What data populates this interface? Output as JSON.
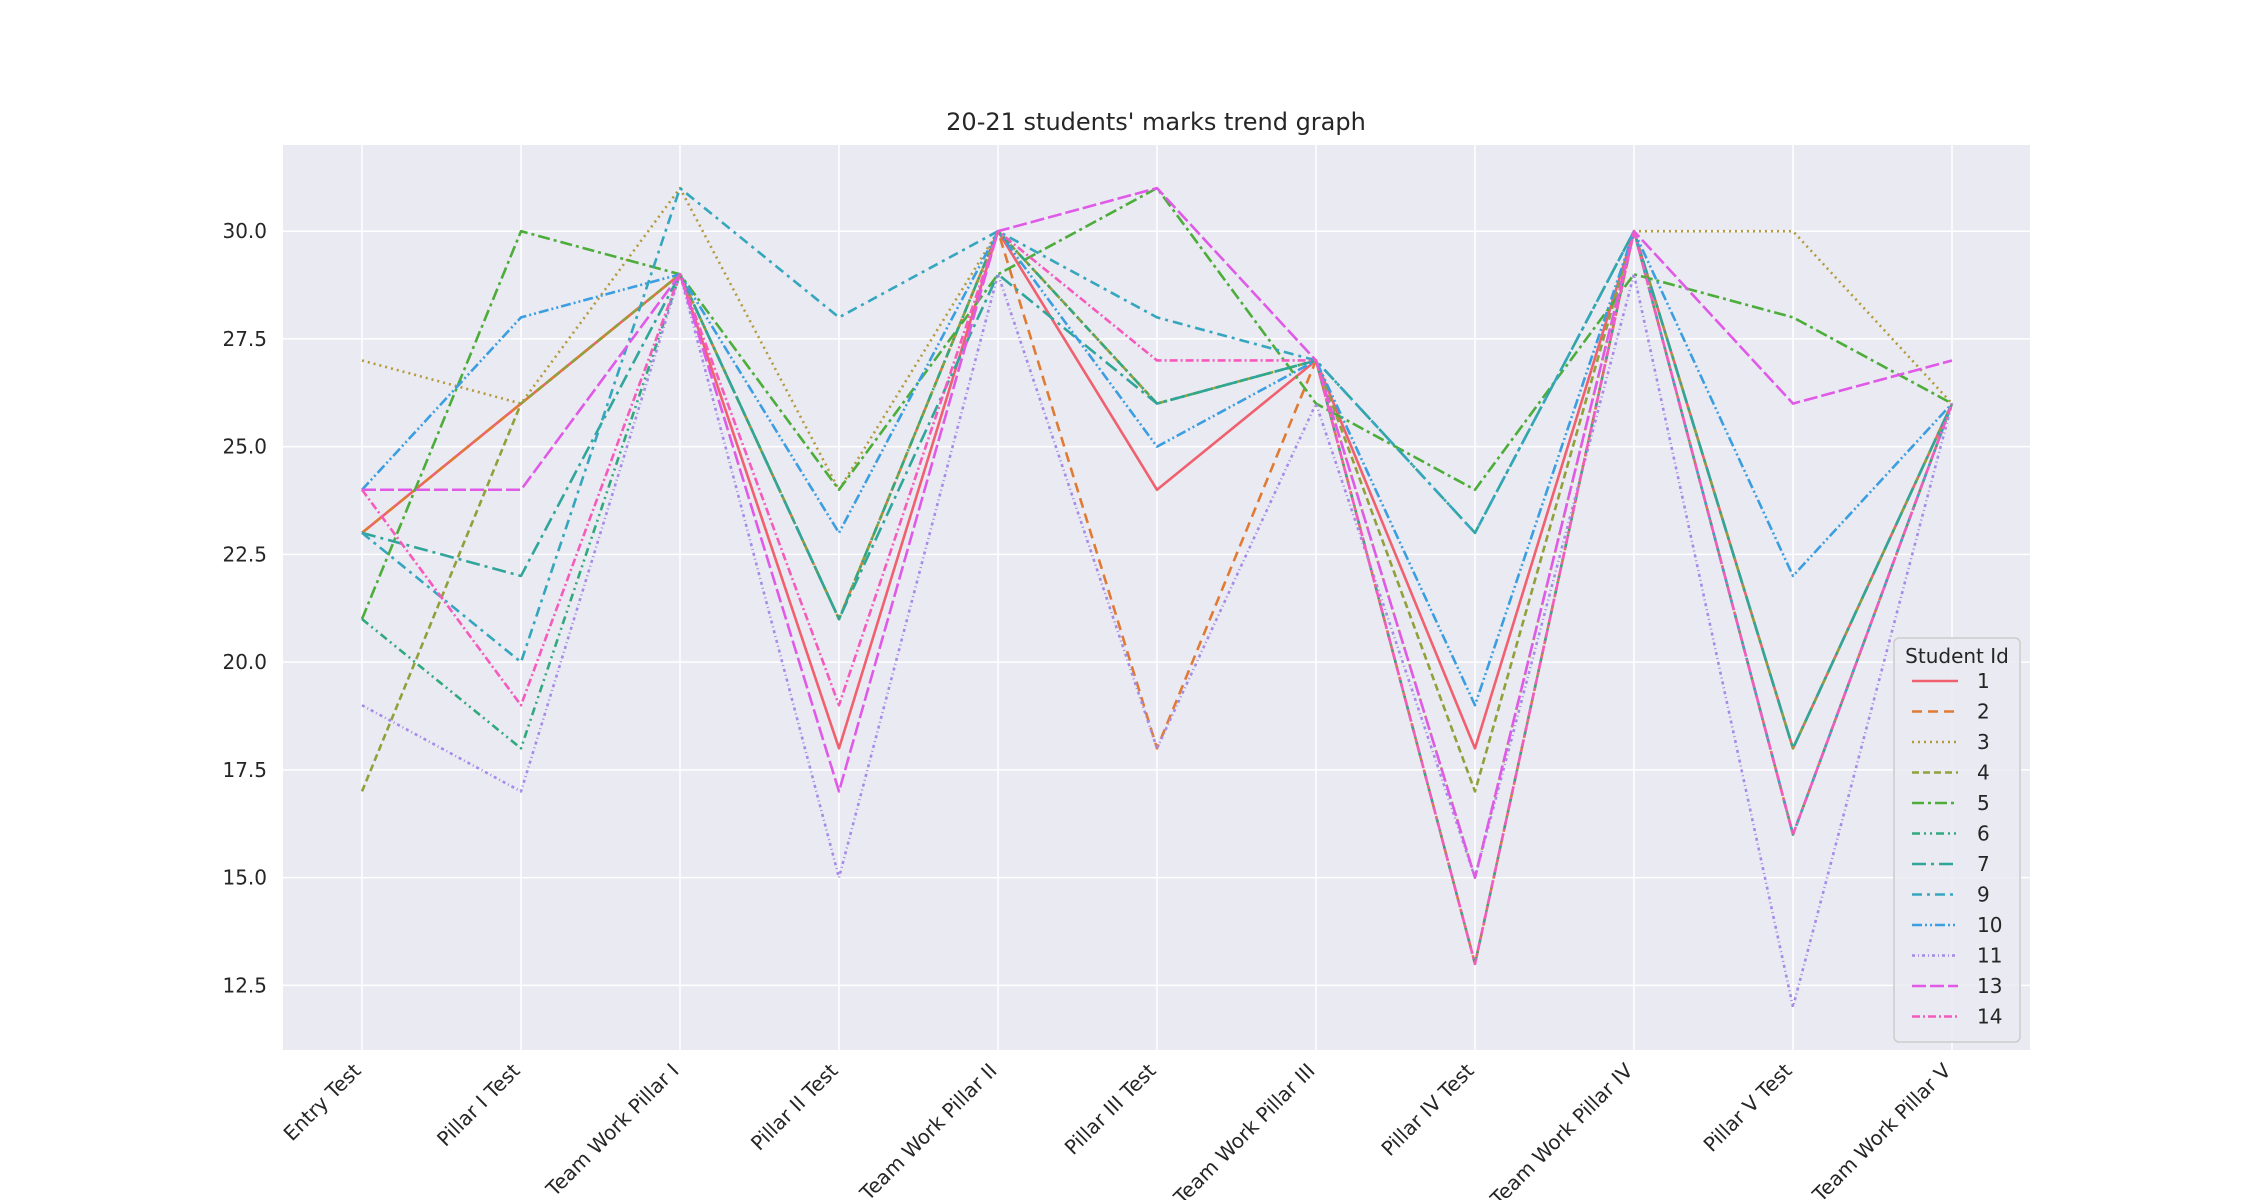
{
  "chart_data": {
    "type": "line",
    "title": "20-21 students' marks trend graph",
    "xlabel": "",
    "ylabel": "",
    "categories": [
      "Entry Test",
      "Pillar I Test",
      "Team Work Pillar I",
      "Pillar II Test",
      "Team Work  Pillar II",
      "Pillar III Test",
      "Team Work  Pillar III",
      "Pillar IV Test",
      "Team Work  Pillar IV",
      "Pillar V Test",
      "Team Work  Pillar V"
    ],
    "ylim": [
      11,
      32
    ],
    "yticks": [
      "12.5",
      "15.0",
      "17.5",
      "20.0",
      "22.5",
      "25.0",
      "27.5",
      "30.0"
    ],
    "grid": true,
    "legend": {
      "title": "Student Id",
      "placement": "lower-right"
    },
    "series": [
      {
        "name": "1",
        "color": "#f0606f",
        "dash": "",
        "values": [
          23,
          26,
          29,
          18,
          30,
          24,
          27,
          18,
          30,
          18,
          26
        ]
      },
      {
        "name": "2",
        "color": "#e07b35",
        "dash": "10,6",
        "values": [
          23,
          26,
          29,
          21,
          30,
          18,
          27,
          13,
          30,
          16,
          26
        ]
      },
      {
        "name": "3",
        "color": "#b49a3a",
        "dash": "2,4",
        "values": [
          27,
          26,
          31,
          24,
          30,
          26,
          27,
          15,
          30,
          30,
          26
        ]
      },
      {
        "name": "4",
        "color": "#91a03a",
        "dash": "7,4",
        "values": [
          17,
          26,
          29,
          21,
          30,
          26,
          27,
          17,
          30,
          18,
          26
        ]
      },
      {
        "name": "5",
        "color": "#4cad3b",
        "dash": "12,4,3,4",
        "values": [
          21,
          30,
          29,
          24,
          29,
          31,
          26,
          24,
          29,
          28,
          26
        ]
      },
      {
        "name": "6",
        "color": "#31a87e",
        "dash": "8,4,2,4,2,4",
        "values": [
          21,
          18,
          29,
          21,
          30,
          26,
          27,
          13,
          30,
          16,
          26
        ]
      },
      {
        "name": "7",
        "color": "#30a69a",
        "dash": "14,5,3,5",
        "values": [
          23,
          22,
          29,
          21,
          29,
          26,
          27,
          23,
          30,
          18,
          26
        ]
      },
      {
        "name": "9",
        "color": "#34a6bd",
        "dash": "10,5,3,5",
        "values": [
          23,
          20,
          31,
          28,
          30,
          28,
          27,
          23,
          30,
          16,
          26
        ]
      },
      {
        "name": "10",
        "color": "#3b9ee0",
        "dash": "10,3,2,3,2,3",
        "values": [
          24,
          28,
          29,
          23,
          30,
          25,
          27,
          19,
          30,
          22,
          26
        ]
      },
      {
        "name": "11",
        "color": "#a58ae8",
        "dash": "3,3,1,3",
        "values": [
          19,
          17,
          29,
          15,
          29,
          18,
          26,
          15,
          29,
          12,
          26
        ]
      },
      {
        "name": "13",
        "color": "#e05ae8",
        "dash": "14,4",
        "values": [
          24,
          24,
          29,
          17,
          30,
          31,
          27,
          15,
          30,
          26,
          27
        ]
      },
      {
        "name": "14",
        "color": "#f55bbd",
        "dash": "8,3,2,3",
        "values": [
          24,
          19,
          29,
          19,
          30,
          27,
          27,
          13,
          30,
          16,
          26
        ]
      }
    ]
  }
}
